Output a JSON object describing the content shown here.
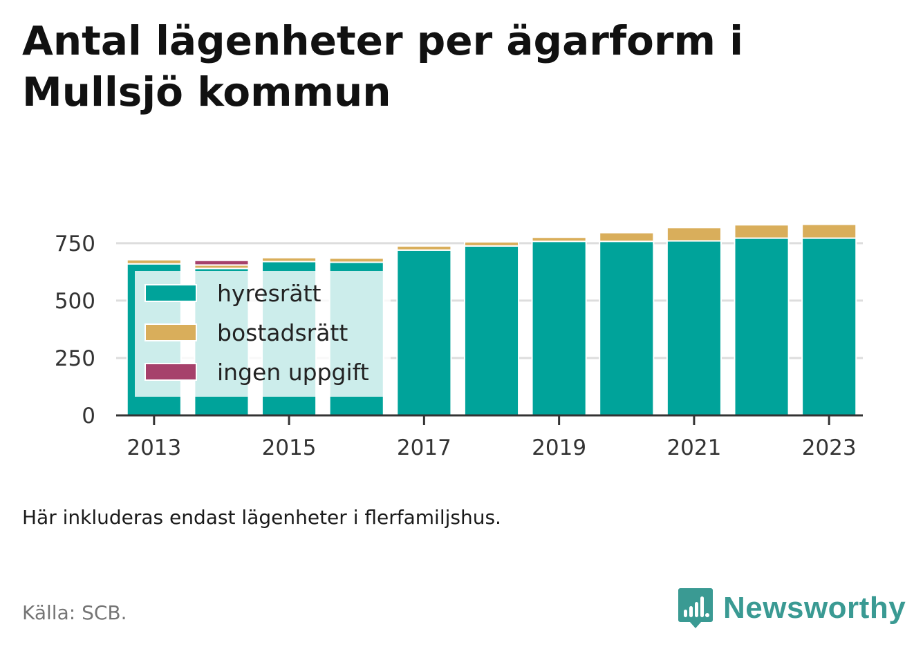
{
  "page": {
    "title": "Antal lägenheter per ägarform i Mullsjö kommun",
    "note": "Här inkluderas endast lägenheter i flerfamiljshus.",
    "source": "Källa: SCB.",
    "brand": "Newsworthy",
    "brand_color": "#3a9a93",
    "logo_icon": "newsworthy-bar-chart-icon"
  },
  "chart_data": {
    "type": "bar",
    "stacked": true,
    "categories": [
      "2013",
      "2014",
      "2015",
      "2016",
      "2017",
      "2018",
      "2019",
      "2020",
      "2021",
      "2022",
      "2023"
    ],
    "x_tick_labels": [
      "2013",
      "2015",
      "2017",
      "2019",
      "2021",
      "2023"
    ],
    "y_ticks": [
      0,
      250,
      500,
      750
    ],
    "ylim": [
      0,
      870
    ],
    "grid": true,
    "legend_position": "top-left (inside plot)",
    "series": [
      {
        "name": "hyresrätt",
        "color": "#00a39a",
        "values": [
          660,
          640,
          670,
          667,
          720,
          738,
          758,
          758,
          760,
          772,
          772
        ]
      },
      {
        "name": "bostadsrätt",
        "color": "#d9ae5b",
        "values": [
          18,
          15,
          17,
          18,
          18,
          18,
          18,
          38,
          58,
          58,
          60
        ]
      },
      {
        "name": "ingen uppgift",
        "color": "#a6416b",
        "values": [
          0,
          20,
          0,
          0,
          0,
          0,
          0,
          0,
          0,
          0,
          0
        ]
      }
    ]
  }
}
